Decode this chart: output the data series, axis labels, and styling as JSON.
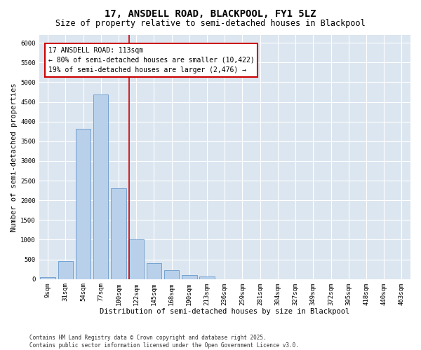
{
  "title_line1": "17, ANSDELL ROAD, BLACKPOOL, FY1 5LZ",
  "title_line2": "Size of property relative to semi-detached houses in Blackpool",
  "xlabel": "Distribution of semi-detached houses by size in Blackpool",
  "ylabel": "Number of semi-detached properties",
  "categories": [
    "9sqm",
    "31sqm",
    "54sqm",
    "77sqm",
    "100sqm",
    "122sqm",
    "145sqm",
    "168sqm",
    "190sqm",
    "213sqm",
    "236sqm",
    "259sqm",
    "281sqm",
    "304sqm",
    "327sqm",
    "349sqm",
    "372sqm",
    "395sqm",
    "418sqm",
    "440sqm",
    "463sqm"
  ],
  "values": [
    50,
    460,
    3820,
    4680,
    2310,
    1000,
    410,
    220,
    95,
    65,
    0,
    0,
    0,
    0,
    0,
    0,
    0,
    0,
    0,
    0,
    0
  ],
  "bar_color": "#b8d0ea",
  "bar_edge_color": "#6699cc",
  "property_line_color": "#cc0000",
  "annotation_line1": "17 ANSDELL ROAD: 113sqm",
  "annotation_line2": "← 80% of semi-detached houses are smaller (10,422)",
  "annotation_line3": "19% of semi-detached houses are larger (2,476) →",
  "ylim": [
    0,
    6200
  ],
  "yticks": [
    0,
    500,
    1000,
    1500,
    2000,
    2500,
    3000,
    3500,
    4000,
    4500,
    5000,
    5500,
    6000
  ],
  "footer": "Contains HM Land Registry data © Crown copyright and database right 2025.\nContains public sector information licensed under the Open Government Licence v3.0.",
  "fig_bg_color": "#ffffff",
  "plot_bg_color": "#dce6f0",
  "grid_color": "#ffffff",
  "title1_fontsize": 10,
  "title2_fontsize": 8.5,
  "axis_label_fontsize": 7.5,
  "tick_fontsize": 6.5,
  "annotation_fontsize": 7,
  "footer_fontsize": 5.5
}
